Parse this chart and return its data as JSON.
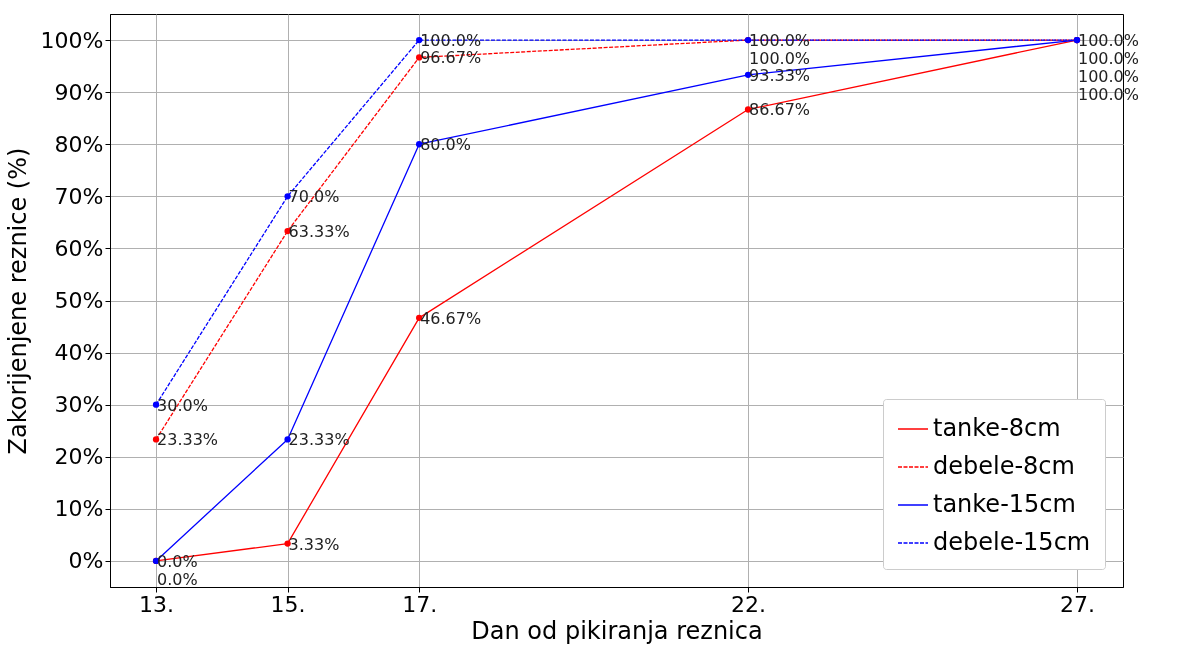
{
  "chart_data": {
    "type": "line",
    "xlabel": "Dan od pikiranja reznica",
    "ylabel": "Zakorijenjene reznice (%)",
    "x": [
      13,
      15,
      17,
      22,
      27
    ],
    "xlim": [
      12.3,
      27.7
    ],
    "xticks": [
      {
        "value": 13,
        "label": "13."
      },
      {
        "value": 15,
        "label": "15."
      },
      {
        "value": 17,
        "label": "17."
      },
      {
        "value": 22,
        "label": "22."
      },
      {
        "value": 27,
        "label": "27."
      }
    ],
    "ylim": [
      -5,
      105
    ],
    "yticks": [
      {
        "value": 0,
        "label": "0%"
      },
      {
        "value": 10,
        "label": "10%"
      },
      {
        "value": 20,
        "label": "20%"
      },
      {
        "value": 30,
        "label": "30%"
      },
      {
        "value": 40,
        "label": "40%"
      },
      {
        "value": 50,
        "label": "50%"
      },
      {
        "value": 60,
        "label": "60%"
      },
      {
        "value": 70,
        "label": "70%"
      },
      {
        "value": 80,
        "label": "80%"
      },
      {
        "value": 90,
        "label": "90%"
      },
      {
        "value": 100,
        "label": "100%"
      }
    ],
    "grid": true,
    "legend": "bottom right",
    "marker": "circle",
    "series": [
      {
        "name": "tanke-8cm",
        "color": "#ff0000",
        "line_style": "solid",
        "values": [
          0,
          3.33,
          46.67,
          86.67,
          100
        ],
        "value_labels": [
          "0.0%",
          "3.33%",
          "46.67%",
          "86.67%",
          "100.0%"
        ]
      },
      {
        "name": "debele-8cm",
        "color": "#ff0000",
        "line_style": "dashed",
        "values": [
          23.33,
          63.33,
          96.67,
          100,
          100
        ],
        "value_labels": [
          "23.33%",
          "63.33%",
          "96.67%",
          "100.0%",
          "100.0%"
        ]
      },
      {
        "name": "tanke-15cm",
        "color": "#0000ff",
        "line_style": "solid",
        "values": [
          0,
          23.33,
          80,
          93.33,
          100
        ],
        "value_labels": [
          "0.0%",
          "23.33%",
          "80.0%",
          "93.33%",
          "100.0%"
        ]
      },
      {
        "name": "debele-15cm",
        "color": "#0000ff",
        "line_style": "dashed",
        "values": [
          30,
          70,
          100,
          100,
          100
        ],
        "value_labels": [
          "30.0%",
          "70.0%",
          "100.0%",
          "100.0%",
          "100.0%"
        ]
      }
    ]
  }
}
